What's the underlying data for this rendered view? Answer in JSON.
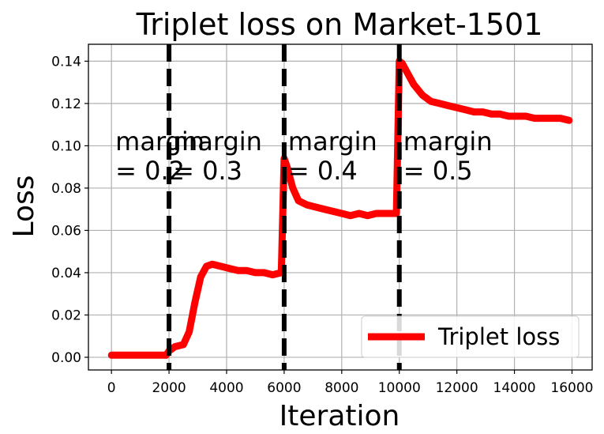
{
  "chart_data": {
    "type": "line",
    "title": "Triplet loss on Market-1501",
    "xlabel": "Iteration",
    "ylabel": "Loss",
    "xlim": [
      -800,
      16700
    ],
    "ylim": [
      -0.006,
      0.148
    ],
    "xticks": [
      0,
      2000,
      4000,
      6000,
      8000,
      10000,
      12000,
      14000,
      16000
    ],
    "xtick_labels": [
      "0",
      "2000",
      "4000",
      "6000",
      "8000",
      "10000",
      "12000",
      "14000",
      "16000"
    ],
    "yticks": [
      0.0,
      0.02,
      0.04,
      0.06,
      0.08,
      0.1,
      0.12,
      0.14
    ],
    "ytick_labels": [
      "0.00",
      "0.02",
      "0.04",
      "0.06",
      "0.08",
      "0.10",
      "0.12",
      "0.14"
    ],
    "grid": true,
    "legend_position": "bottom-right",
    "series": [
      {
        "name": "Triplet loss",
        "color": "#ff0000",
        "x": [
          0,
          400,
          800,
          1200,
          1600,
          1900,
          2000,
          2200,
          2500,
          2700,
          2900,
          3100,
          3300,
          3500,
          3800,
          4100,
          4400,
          4700,
          5000,
          5300,
          5600,
          5900,
          6000,
          6100,
          6300,
          6500,
          6800,
          7100,
          7400,
          7700,
          8000,
          8300,
          8600,
          8900,
          9200,
          9500,
          9800,
          9900,
          10000,
          10100,
          10300,
          10500,
          10800,
          11100,
          11400,
          11700,
          12000,
          12300,
          12600,
          12900,
          13200,
          13500,
          13800,
          14100,
          14400,
          14700,
          15000,
          15300,
          15600,
          15900
        ],
        "values": [
          0.001,
          0.001,
          0.001,
          0.001,
          0.001,
          0.001,
          0.003,
          0.005,
          0.006,
          0.012,
          0.026,
          0.038,
          0.043,
          0.044,
          0.043,
          0.042,
          0.041,
          0.041,
          0.04,
          0.04,
          0.039,
          0.04,
          0.094,
          0.09,
          0.08,
          0.074,
          0.072,
          0.071,
          0.07,
          0.069,
          0.068,
          0.067,
          0.068,
          0.067,
          0.068,
          0.068,
          0.068,
          0.068,
          0.14,
          0.139,
          0.134,
          0.129,
          0.124,
          0.121,
          0.12,
          0.119,
          0.118,
          0.117,
          0.116,
          0.116,
          0.115,
          0.115,
          0.114,
          0.114,
          0.114,
          0.113,
          0.113,
          0.113,
          0.113,
          0.112
        ]
      }
    ],
    "vlines": [
      {
        "x": 2000,
        "style": "dashed",
        "color": "#000000"
      },
      {
        "x": 6000,
        "style": "dashed",
        "color": "#000000"
      },
      {
        "x": 10000,
        "style": "dashed",
        "color": "#000000"
      }
    ],
    "annotations": [
      {
        "lines": [
          "margin",
          "= 0.2"
        ],
        "x": 0,
        "y_top": 0.098
      },
      {
        "lines": [
          "margin",
          "= 0.3"
        ],
        "x": 2000,
        "y_top": 0.098
      },
      {
        "lines": [
          "margin",
          "= 0.4"
        ],
        "x": 6000,
        "y_top": 0.098
      },
      {
        "lines": [
          "margin",
          "= 0.5"
        ],
        "x": 10000,
        "y_top": 0.098
      }
    ]
  }
}
